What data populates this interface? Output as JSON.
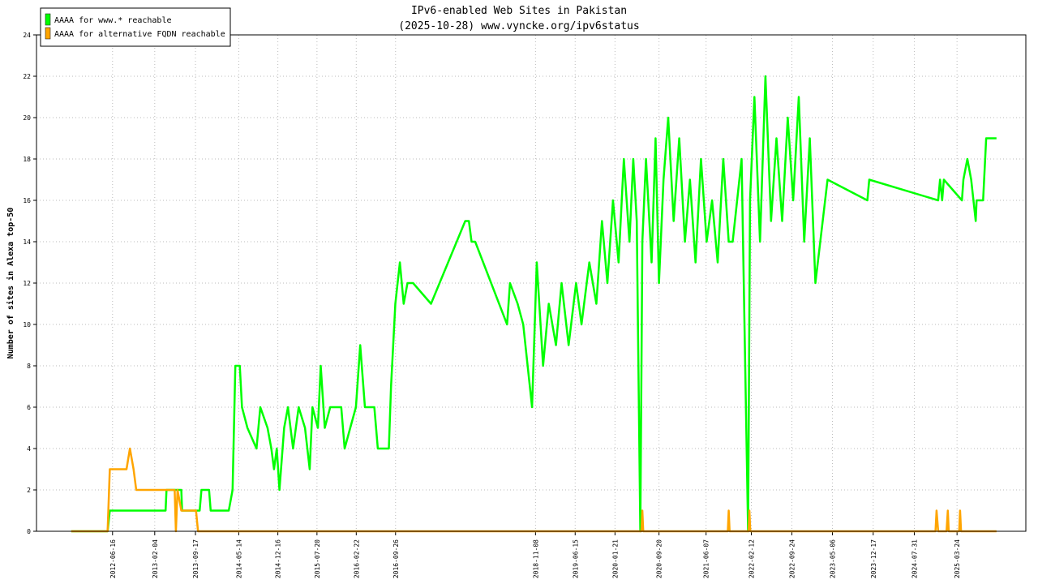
{
  "chart_data": {
    "type": "line",
    "title": "IPv6-enabled Web Sites in Pakistan",
    "subtitle": "(2025-10-28) www.vyncke.org/ipv6status",
    "y_label": "Number of sites in Alexa top-50",
    "xlim": [
      "2011-04-23",
      "2026-04-08"
    ],
    "xticks": [
      "2012-06-16",
      "2013-02-04",
      "2013-09-17",
      "2014-05-14",
      "2014-12-16",
      "2015-07-20",
      "2016-02-22",
      "2016-09-26",
      "2018-11-08",
      "2019-06-15",
      "2020-01-21",
      "2020-09-20",
      "2021-06-07",
      "2022-02-12",
      "2022-09-24",
      "2023-05-06",
      "2023-12-17",
      "2024-07-31",
      "2025-03-24"
    ],
    "ylim": [
      0,
      24
    ],
    "yticks": [
      0,
      2,
      4,
      6,
      8,
      10,
      12,
      14,
      16,
      18,
      20,
      22,
      24
    ],
    "grid": true,
    "legend": "top-left",
    "series": [
      {
        "name": "AAAA for www.* reachable",
        "color": "#00ff00",
        "x": [
          "2011-11-01",
          "2012-05-20",
          "2012-06-01",
          "2012-11-10",
          "2012-11-20",
          "2013-04-05",
          "2013-04-10",
          "2013-07-01",
          "2013-07-05",
          "2013-10-10",
          "2013-10-20",
          "2013-12-01",
          "2013-12-10",
          "2014-03-20",
          "2014-04-10",
          "2014-04-25",
          "2014-05-20",
          "2014-06-01",
          "2014-07-01",
          "2014-08-20",
          "2014-09-10",
          "2014-10-20",
          "2014-11-10",
          "2014-11-25",
          "2014-12-10",
          "2014-12-25",
          "2015-01-20",
          "2015-02-10",
          "2015-03-10",
          "2015-04-10",
          "2015-05-15",
          "2015-06-10",
          "2015-06-25",
          "2015-07-25",
          "2015-08-10",
          "2015-09-01",
          "2015-10-01",
          "2015-12-01",
          "2015-12-20",
          "2016-01-20",
          "2016-02-20",
          "2016-03-15",
          "2016-04-10",
          "2016-06-01",
          "2016-06-20",
          "2016-08-20",
          "2016-09-01",
          "2016-09-25",
          "2016-10-20",
          "2016-11-10",
          "2016-12-01",
          "2017-01-01",
          "2017-04-10",
          "2017-10-16",
          "2017-11-05",
          "2017-11-20",
          "2017-12-10",
          "2018-06-04",
          "2018-06-20",
          "2018-08-01",
          "2018-09-01",
          "2018-10-20",
          "2018-11-15",
          "2018-12-20",
          "2019-01-20",
          "2019-03-01",
          "2019-04-01",
          "2019-05-10",
          "2019-06-20",
          "2019-07-20",
          "2019-09-01",
          "2019-10-10",
          "2019-11-10",
          "2019-12-10",
          "2020-01-10",
          "2020-02-10",
          "2020-03-10",
          "2020-04-10",
          "2020-05-01",
          "2020-05-20",
          "2020-06-09",
          "2020-06-20",
          "2020-07-10",
          "2020-08-10",
          "2020-09-01",
          "2020-09-20",
          "2020-10-15",
          "2020-11-10",
          "2020-12-10",
          "2021-01-10",
          "2021-02-10",
          "2021-03-10",
          "2021-04-10",
          "2021-05-10",
          "2021-06-10",
          "2021-07-10",
          "2021-08-10",
          "2021-09-10",
          "2021-10-10",
          "2021-11-01",
          "2021-12-20",
          "2022-01-25",
          "2022-02-05",
          "2022-03-01",
          "2022-04-01",
          "2022-05-01",
          "2022-06-01",
          "2022-07-01",
          "2022-08-01",
          "2022-09-01",
          "2022-10-01",
          "2022-11-01",
          "2022-12-01",
          "2023-01-01",
          "2023-02-01",
          "2023-04-09",
          "2023-11-15",
          "2023-11-25",
          "2024-12-10",
          "2024-12-20",
          "2025-01-01",
          "2025-01-10",
          "2025-04-20",
          "2025-04-28",
          "2025-05-20",
          "2025-06-10",
          "2025-07-05",
          "2025-07-10",
          "2025-08-15",
          "2025-09-01",
          "2025-10-28"
        ],
        "values": [
          0,
          0,
          1,
          1,
          1,
          1,
          2,
          2,
          1,
          1,
          2,
          2,
          1,
          1,
          2,
          8,
          8,
          6,
          5,
          4,
          6,
          5,
          4,
          3,
          4,
          2,
          5,
          6,
          4,
          6,
          5,
          3,
          6,
          5,
          8,
          5,
          6,
          6,
          4,
          5,
          6,
          9,
          6,
          6,
          4,
          4,
          7,
          11,
          13,
          11,
          12,
          12,
          11,
          15,
          15,
          14,
          14,
          10,
          12,
          11,
          10,
          6,
          13,
          8,
          11,
          9,
          12,
          9,
          12,
          10,
          13,
          11,
          15,
          12,
          16,
          13,
          18,
          14,
          18,
          15,
          0,
          14,
          18,
          13,
          19,
          12,
          17,
          20,
          15,
          19,
          14,
          17,
          13,
          18,
          14,
          16,
          13,
          18,
          14,
          14,
          18,
          0,
          16,
          21,
          14,
          22,
          15,
          19,
          15,
          20,
          16,
          21,
          14,
          19,
          12,
          17,
          16,
          17,
          16,
          17,
          16,
          17,
          16,
          17,
          18,
          17,
          15,
          16,
          16,
          19,
          19
        ]
      },
      {
        "name": "AAAA for alternative FQDN reachable",
        "color": "#ffa500",
        "x": [
          "2011-11-01",
          "2012-05-20",
          "2012-06-01",
          "2012-09-01",
          "2012-09-20",
          "2012-10-10",
          "2012-10-25",
          "2013-05-25",
          "2013-06-01",
          "2013-06-10",
          "2013-07-01",
          "2013-09-20",
          "2013-10-01",
          "2020-06-15",
          "2020-06-20",
          "2020-06-25",
          "2021-10-05",
          "2021-10-10",
          "2021-10-15",
          "2022-01-28",
          "2022-02-01",
          "2022-02-06",
          "2024-11-25",
          "2024-12-01",
          "2024-12-10",
          "2025-01-25",
          "2025-02-01",
          "2025-02-06",
          "2025-04-05",
          "2025-04-10",
          "2025-04-15",
          "2025-10-28"
        ],
        "values": [
          0,
          0,
          3,
          3,
          4,
          3,
          2,
          2,
          0,
          2,
          1,
          1,
          0,
          0,
          1,
          0,
          0,
          1,
          0,
          0,
          1,
          0,
          0,
          1,
          0,
          0,
          1,
          0,
          0,
          1,
          0,
          0
        ]
      }
    ]
  }
}
